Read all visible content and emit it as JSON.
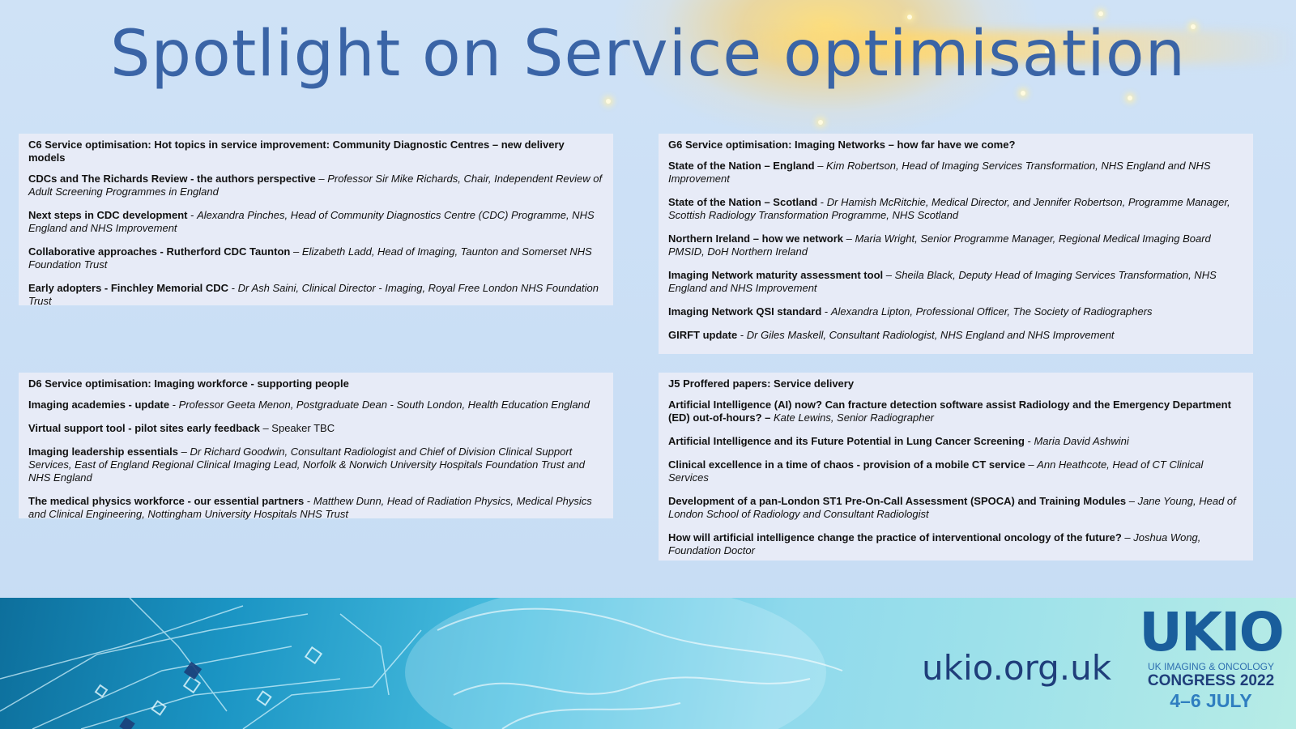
{
  "title": "Spotlight on Service optimisation",
  "sessions": [
    {
      "heading": "C6 Service optimisation: Hot topics in service improvement: Community Diagnostic Centres – new delivery models",
      "items": [
        {
          "talk": "CDCs and The Richards Review - the authors perspective",
          "sep": " – ",
          "speaker": "Professor Sir Mike Richards, Chair, Independent Review of Adult Screening Programmes in England"
        },
        {
          "talk": "Next steps in CDC development",
          "sep": " - ",
          "speaker": "Alexandra Pinches, Head of Community Diagnostics Centre (CDC) Programme, NHS England and NHS Improvement"
        },
        {
          "talk": "Collaborative approaches - Rutherford CDC Taunton",
          "sep": " – ",
          "speaker": "Elizabeth Ladd, Head of Imaging, Taunton and Somerset NHS Foundation Trust"
        },
        {
          "talk": "Early adopters - Finchley Memorial CDC",
          "sep": " - ",
          "speaker": "Dr Ash Saini, Clinical Director - Imaging, Royal Free London NHS Foundation Trust"
        }
      ]
    },
    {
      "heading": "G6 Service optimisation: Imaging Networks – how far have we come?",
      "items": [
        {
          "talk": "State of the Nation – England",
          "sep": " – ",
          "speaker": "Kim Robertson, Head of Imaging Services Transformation, NHS England and NHS Improvement"
        },
        {
          "talk": "State of the Nation – Scotland",
          "sep": " - ",
          "speaker": "Dr Hamish McRitchie, Medical Director, and Jennifer Robertson, Programme Manager, Scottish Radiology Transformation Programme, NHS Scotland"
        },
        {
          "talk": "Northern Ireland – how we network",
          "sep": " – ",
          "speaker": "Maria Wright, Senior Programme Manager, Regional Medical Imaging Board PMSID, DoH Northern Ireland"
        },
        {
          "talk": "Imaging Network maturity assessment tool",
          "sep": " – ",
          "speaker": "Sheila Black, Deputy Head of Imaging Services Transformation, NHS England and NHS Improvement"
        },
        {
          "talk": "Imaging Network QSI standard",
          "sep": " - ",
          "speaker": "Alexandra Lipton, Professional Officer, The Society of Radiographers"
        },
        {
          "talk": "GIRFT update",
          "sep": " - ",
          "speaker": "Dr Giles Maskell, Consultant Radiologist, NHS England and NHS Improvement"
        }
      ]
    },
    {
      "heading": "D6 Service optimisation: Imaging workforce - supporting people",
      "items": [
        {
          "talk": "Imaging academies - update",
          "sep": " - ",
          "speaker": "Professor Geeta Menon, Postgraduate Dean - South London, Health Education England"
        },
        {
          "talk": "Virtual support tool - pilot sites early feedback",
          "sep": " – ",
          "speaker": "Speaker TBC"
        },
        {
          "talk": "Imaging leadership essentials",
          "sep": " – ",
          "speaker": "Dr Richard Goodwin, Consultant Radiologist and Chief of Division Clinical Support Services, East of England Regional Clinical Imaging Lead, Norfolk & Norwich University Hospitals Foundation Trust and NHS England"
        },
        {
          "talk": "The medical physics workforce - our essential partners",
          "sep": " - ",
          "speaker": "Matthew Dunn, Head of Radiation Physics, Medical Physics and Clinical Engineering, Nottingham University Hospitals NHS Trust"
        }
      ]
    },
    {
      "heading": "J5 Proffered papers: Service delivery",
      "items": [
        {
          "talk": "Artificial Intelligence (AI) now? Can fracture detection software assist Radiology and the Emergency Department (ED) out-of-hours? –",
          "sep": " ",
          "speaker": "Kate Lewins, Senior Radiographer"
        },
        {
          "talk": "Artificial Intelligence and its Future Potential in Lung Cancer Screening",
          "sep": " - ",
          "speaker": "Maria David Ashwini"
        },
        {
          "talk": "Clinical excellence in a time of chaos - provision of a mobile CT service",
          "sep": " – ",
          "speaker": "Ann Heathcote, Head of CT Clinical Services"
        },
        {
          "talk": "Development of a pan-London ST1 Pre-On-Call Assessment (SPOCA) and Training Modules",
          "sep": " – ",
          "speaker": "Jane Young, Head of London School of Radiology and Consultant Radiologist"
        },
        {
          "talk": "How will artificial intelligence change the practice of interventional oncology of the future?",
          "sep": " – ",
          "speaker": "Joshua Wong, Foundation Doctor"
        }
      ]
    }
  ],
  "footer": {
    "url": "ukio.org.uk",
    "logo_main": "UKIO",
    "logo_sub": "UK IMAGING & ONCOLOGY",
    "logo_congress": "CONGRESS 2022",
    "logo_dates": "4–6 JULY"
  }
}
